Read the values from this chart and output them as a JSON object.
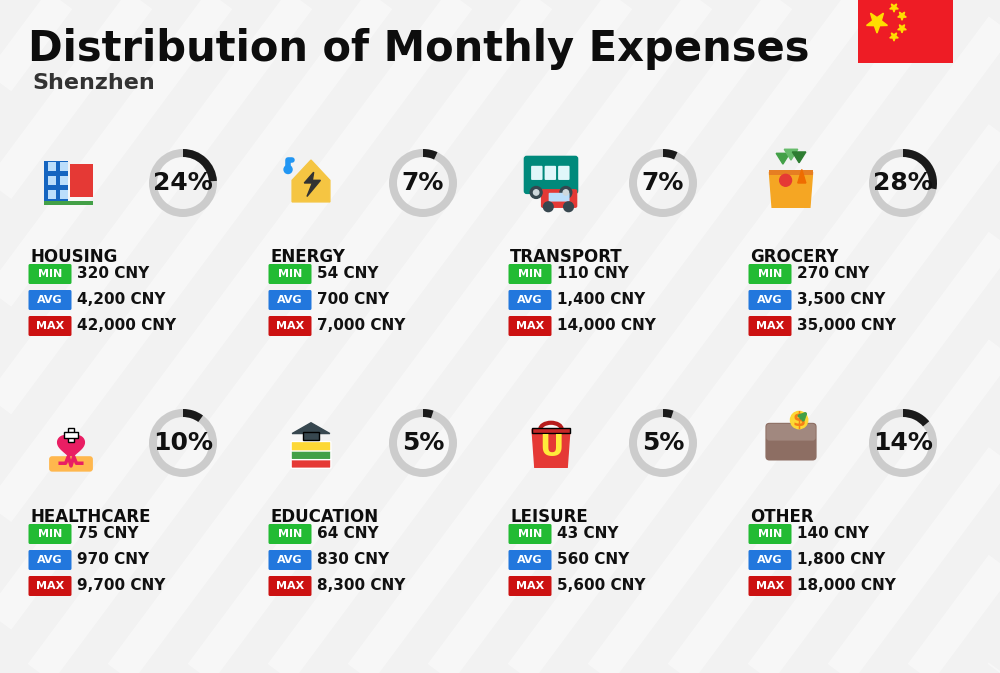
{
  "title": "Distribution of Monthly Expenses",
  "subtitle": "Shenzhen",
  "background_color": "#f2f2f2",
  "categories": [
    {
      "name": "HOUSING",
      "percent": 24,
      "min_val": "320 CNY",
      "avg_val": "4,200 CNY",
      "max_val": "42,000 CNY",
      "row": 0,
      "col": 0
    },
    {
      "name": "ENERGY",
      "percent": 7,
      "min_val": "54 CNY",
      "avg_val": "700 CNY",
      "max_val": "7,000 CNY",
      "row": 0,
      "col": 1
    },
    {
      "name": "TRANSPORT",
      "percent": 7,
      "min_val": "110 CNY",
      "avg_val": "1,400 CNY",
      "max_val": "14,000 CNY",
      "row": 0,
      "col": 2
    },
    {
      "name": "GROCERY",
      "percent": 28,
      "min_val": "270 CNY",
      "avg_val": "3,500 CNY",
      "max_val": "35,000 CNY",
      "row": 0,
      "col": 3
    },
    {
      "name": "HEALTHCARE",
      "percent": 10,
      "min_val": "75 CNY",
      "avg_val": "970 CNY",
      "max_val": "9,700 CNY",
      "row": 1,
      "col": 0
    },
    {
      "name": "EDUCATION",
      "percent": 5,
      "min_val": "64 CNY",
      "avg_val": "830 CNY",
      "max_val": "8,300 CNY",
      "row": 1,
      "col": 1
    },
    {
      "name": "LEISURE",
      "percent": 5,
      "min_val": "43 CNY",
      "avg_val": "560 CNY",
      "max_val": "5,600 CNY",
      "row": 1,
      "col": 2
    },
    {
      "name": "OTHER",
      "percent": 14,
      "min_val": "140 CNY",
      "avg_val": "1,800 CNY",
      "max_val": "18,000 CNY",
      "row": 1,
      "col": 3
    }
  ],
  "min_color": "#22bb33",
  "avg_color": "#2277dd",
  "max_color": "#cc1111",
  "ring_filled_color": "#1a1a1a",
  "ring_empty_color": "#cccccc",
  "stripe_color": "#ffffff",
  "stripe_alpha": 0.45,
  "title_fontsize": 30,
  "subtitle_fontsize": 16,
  "category_name_fontsize": 12,
  "percent_fontsize": 18,
  "badge_label_fontsize": 8,
  "badge_value_fontsize": 11,
  "flag_color": "#ee1c25",
  "star_color": "#ffde00"
}
